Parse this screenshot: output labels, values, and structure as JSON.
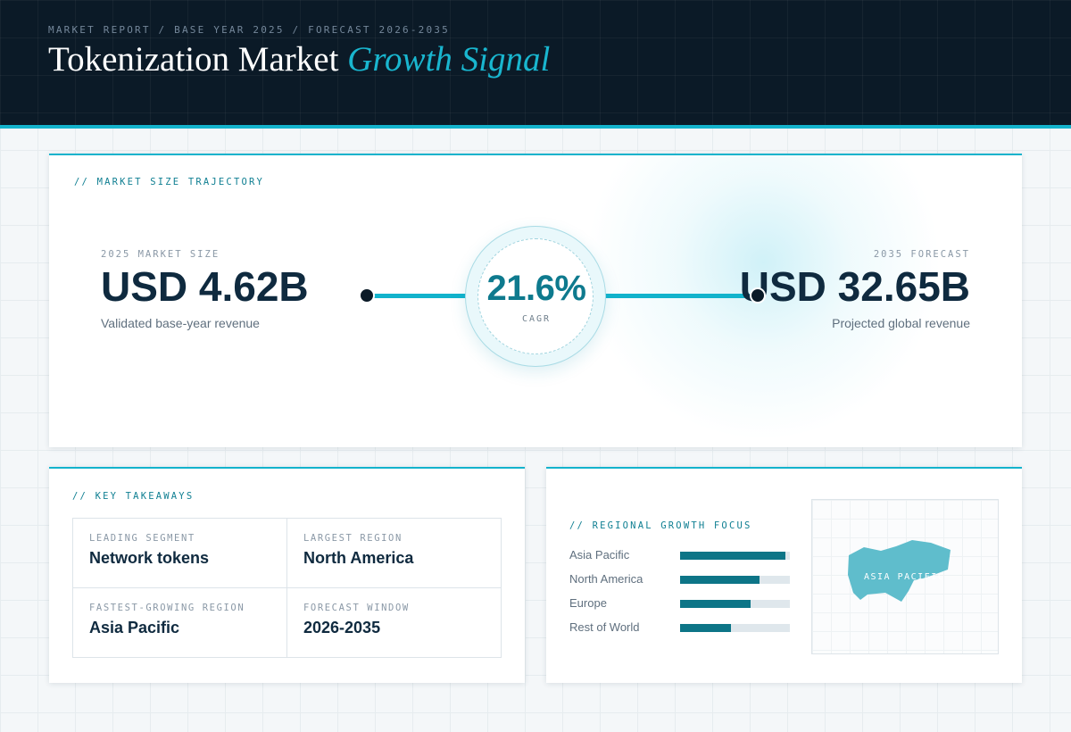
{
  "header": {
    "eyebrow": "MARKET REPORT / BASE YEAR 2025 / FORECAST 2026-2035",
    "title_main": "Tokenization Market",
    "title_accent": "Growth Signal"
  },
  "trajectory": {
    "label": "// MARKET SIZE TRAJECTORY",
    "base": {
      "caption": "2025 MARKET SIZE",
      "value": "USD 4.62B",
      "description": "Validated base-year revenue"
    },
    "forecast": {
      "caption": "2035 FORECAST",
      "value": "USD 32.65B",
      "description": "Projected global revenue"
    },
    "cagr": {
      "value": "21.6%",
      "label": "CAGR"
    }
  },
  "takeaways": {
    "label": "// KEY TAKEAWAYS",
    "items": [
      {
        "caption": "LEADING SEGMENT",
        "value": "Network tokens"
      },
      {
        "caption": "LARGEST REGION",
        "value": "North America"
      },
      {
        "caption": "FASTEST-GROWING REGION",
        "value": "Asia Pacific"
      },
      {
        "caption": "FORECAST WINDOW",
        "value": "2026-2035"
      }
    ]
  },
  "regional": {
    "label": "// REGIONAL GROWTH FOCUS",
    "regions": [
      {
        "name": "Asia Pacific",
        "level": 0.96
      },
      {
        "name": "North America",
        "level": 0.72
      },
      {
        "name": "Europe",
        "level": 0.64
      },
      {
        "name": "Rest of World",
        "level": 0.46
      }
    ],
    "map_label": "ASIA PACIFIC",
    "map_color": "#5fbdcc"
  },
  "colors": {
    "accent": "#14b3cc",
    "dark": "#0b1a27",
    "bar": "#0d7587"
  }
}
